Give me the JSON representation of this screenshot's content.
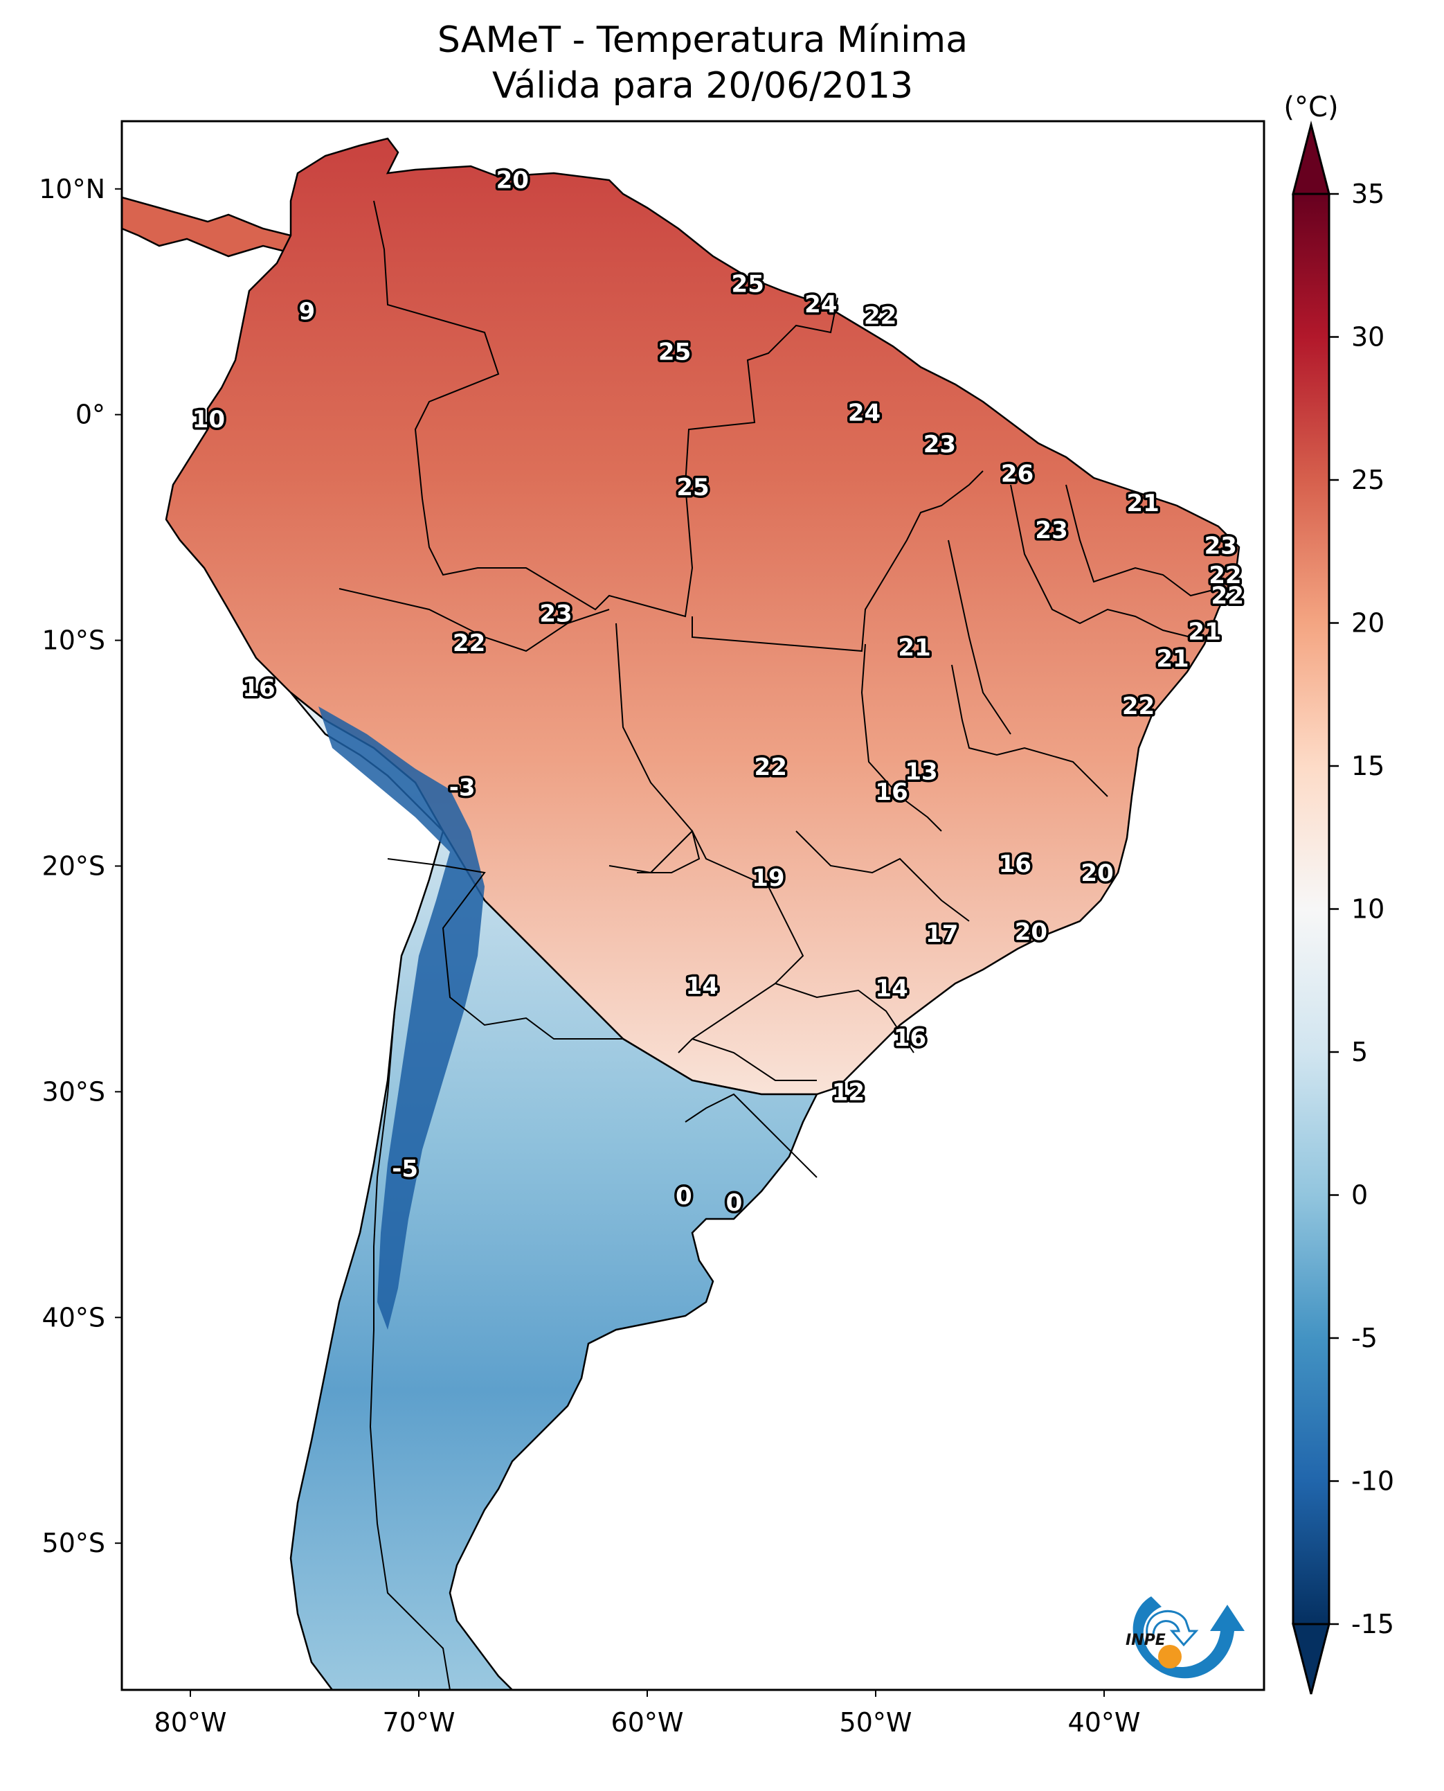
{
  "chart_data": {
    "type": "heatmap",
    "title": "SAMeT - Temperatura Mínima",
    "subtitle": "Válida para 20/06/2013",
    "xlabel": "",
    "ylabel": "",
    "projection": "PlateCarree",
    "lon_range": [
      -83,
      -33
    ],
    "lat_range": [
      -56.5,
      13
    ],
    "x_ticks": [
      {
        "value": -80,
        "label": "80°W"
      },
      {
        "value": -70,
        "label": "70°W"
      },
      {
        "value": -60,
        "label": "60°W"
      },
      {
        "value": -50,
        "label": "50°W"
      },
      {
        "value": -40,
        "label": "40°W"
      }
    ],
    "y_ticks": [
      {
        "value": 10,
        "label": "10°N"
      },
      {
        "value": 0,
        "label": "0°"
      },
      {
        "value": -10,
        "label": "10°S"
      },
      {
        "value": -20,
        "label": "20°S"
      },
      {
        "value": -30,
        "label": "30°S"
      },
      {
        "value": -40,
        "label": "40°S"
      },
      {
        "value": -50,
        "label": "50°S"
      }
    ],
    "grid": false,
    "colorbar": {
      "unit_label": "(°C)",
      "colormap": "RdBu_r",
      "vmin": -15,
      "vmax": 35,
      "extend": "both",
      "position": "right",
      "ticks": [
        35,
        30,
        25,
        20,
        15,
        10,
        5,
        0,
        -5,
        -10,
        -15
      ],
      "tick_labels": [
        "35",
        "30",
        "25",
        "20",
        "15",
        "10",
        "5",
        "0",
        "-5",
        "-10",
        "-15"
      ]
    },
    "station_labels": [
      {
        "lon": -65.9,
        "lat": 10.4,
        "value": "20"
      },
      {
        "lon": -55.6,
        "lat": 5.8,
        "value": "25"
      },
      {
        "lon": -52.4,
        "lat": 4.9,
        "value": "24"
      },
      {
        "lon": -49.8,
        "lat": 4.4,
        "value": "22"
      },
      {
        "lon": -74.9,
        "lat": 4.6,
        "value": "9"
      },
      {
        "lon": -58.8,
        "lat": 2.8,
        "value": "25"
      },
      {
        "lon": -79.2,
        "lat": -0.2,
        "value": "10"
      },
      {
        "lon": -50.5,
        "lat": 0.1,
        "value": "24"
      },
      {
        "lon": -47.2,
        "lat": -1.3,
        "value": "23"
      },
      {
        "lon": -43.8,
        "lat": -2.6,
        "value": "26"
      },
      {
        "lon": -58.0,
        "lat": -3.2,
        "value": "25"
      },
      {
        "lon": -38.3,
        "lat": -3.9,
        "value": "21"
      },
      {
        "lon": -42.3,
        "lat": -5.1,
        "value": "23"
      },
      {
        "lon": -34.9,
        "lat": -5.8,
        "value": "23"
      },
      {
        "lon": -34.7,
        "lat": -7.1,
        "value": "22"
      },
      {
        "lon": -34.6,
        "lat": -8.0,
        "value": "22"
      },
      {
        "lon": -64.0,
        "lat": -8.8,
        "value": "23"
      },
      {
        "lon": -35.6,
        "lat": -9.6,
        "value": "21"
      },
      {
        "lon": -67.8,
        "lat": -10.1,
        "value": "22"
      },
      {
        "lon": -48.3,
        "lat": -10.3,
        "value": "21"
      },
      {
        "lon": -37.0,
        "lat": -10.8,
        "value": "21"
      },
      {
        "lon": -77.0,
        "lat": -12.1,
        "value": "16"
      },
      {
        "lon": -38.5,
        "lat": -12.9,
        "value": "22"
      },
      {
        "lon": -48.0,
        "lat": -15.8,
        "value": "13"
      },
      {
        "lon": -54.6,
        "lat": -15.6,
        "value": "22"
      },
      {
        "lon": -49.3,
        "lat": -16.7,
        "value": "16"
      },
      {
        "lon": -68.1,
        "lat": -16.5,
        "value": "-3"
      },
      {
        "lon": -54.7,
        "lat": -20.5,
        "value": "19"
      },
      {
        "lon": -43.9,
        "lat": -19.9,
        "value": "16"
      },
      {
        "lon": -40.3,
        "lat": -20.3,
        "value": "20"
      },
      {
        "lon": -47.1,
        "lat": -23.0,
        "value": "17"
      },
      {
        "lon": -43.2,
        "lat": -22.9,
        "value": "20"
      },
      {
        "lon": -57.6,
        "lat": -25.3,
        "value": "14"
      },
      {
        "lon": -49.3,
        "lat": -25.4,
        "value": "14"
      },
      {
        "lon": -48.5,
        "lat": -27.6,
        "value": "16"
      },
      {
        "lon": -51.2,
        "lat": -30.0,
        "value": "12"
      },
      {
        "lon": -70.6,
        "lat": -33.4,
        "value": "-5"
      },
      {
        "lon": -58.4,
        "lat": -34.6,
        "value": "0"
      },
      {
        "lon": -56.2,
        "lat": -34.9,
        "value": "0"
      }
    ]
  },
  "logo": {
    "text": "INPE",
    "colors": {
      "arc": "#1a7fc1",
      "sun": "#f39a1e"
    }
  }
}
